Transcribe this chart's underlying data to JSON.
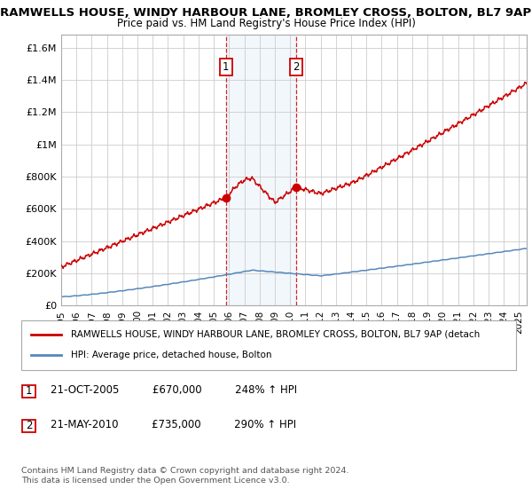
{
  "title1": "RAMWELLS HOUSE, WINDY HARBOUR LANE, BROMLEY CROSS, BOLTON, BL7 9AP",
  "title2": "Price paid vs. HM Land Registry's House Price Index (HPI)",
  "ylabel_ticks": [
    0,
    200000,
    400000,
    600000,
    800000,
    1000000,
    1200000,
    1400000,
    1600000
  ],
  "ylabel_labels": [
    "£0",
    "£200K",
    "£400K",
    "£600K",
    "£800K",
    "£1M",
    "£1.2M",
    "£1.4M",
    "£1.6M"
  ],
  "ylim": [
    0,
    1680000
  ],
  "xlim_start": 1995.0,
  "xlim_end": 2025.5,
  "red_line_color": "#cc0000",
  "blue_line_color": "#5588bb",
  "marker1_x": 2005.8,
  "marker1_y": 670000,
  "marker2_x": 2010.4,
  "marker2_y": 735000,
  "shade_x1": 2005.8,
  "shade_x2": 2010.4,
  "legend_line1": "RAMWELLS HOUSE, WINDY HARBOUR LANE, BROMLEY CROSS, BOLTON, BL7 9AP (detach",
  "legend_line2": "HPI: Average price, detached house, Bolton",
  "table_row1": [
    "1",
    "21-OCT-2005",
    "£670,000",
    "248% ↑ HPI"
  ],
  "table_row2": [
    "2",
    "21-MAY-2010",
    "£735,000",
    "290% ↑ HPI"
  ],
  "footer": "Contains HM Land Registry data © Crown copyright and database right 2024.\nThis data is licensed under the Open Government Licence v3.0.",
  "background_color": "#ffffff",
  "plot_bg_color": "#ffffff",
  "grid_color": "#cccccc"
}
